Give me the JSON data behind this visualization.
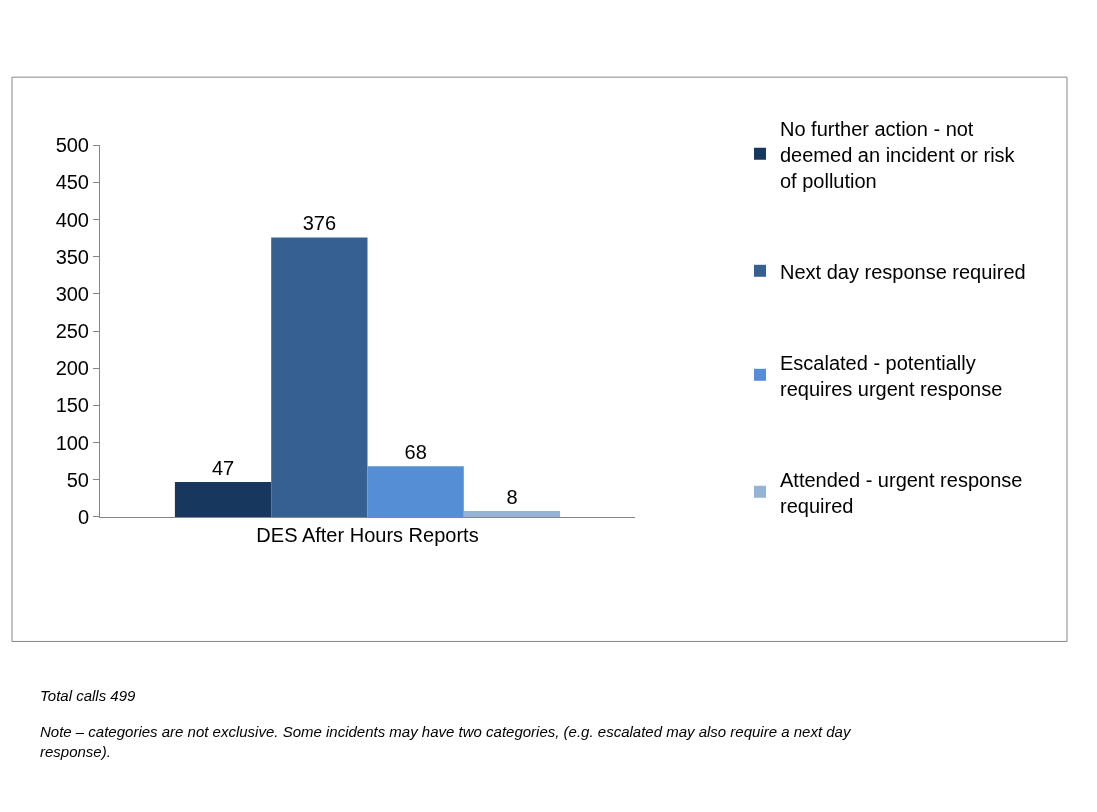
{
  "chart_data": {
    "type": "bar",
    "categories": [
      "DES After Hours Reports"
    ],
    "series": [
      {
        "name": "No further action - not deemed an incident or risk of pollution",
        "color": "#17375e",
        "values": [
          47
        ]
      },
      {
        "name": "Next day response required",
        "color": "#366092",
        "values": [
          376
        ]
      },
      {
        "name": "Escalated - potentially requires urgent response",
        "color": "#558ed5",
        "values": [
          68
        ]
      },
      {
        "name": "Attended - urgent response required",
        "color": "#95b3d7",
        "values": [
          8
        ]
      }
    ],
    "ylim": [
      0,
      500
    ],
    "yticks": [
      0,
      50,
      100,
      150,
      200,
      250,
      300,
      350,
      400,
      450,
      500
    ],
    "data_labels": true,
    "legend": "right",
    "annotations": [
      "Total calls 499",
      "Note – categories are not exclusive. Some incidents may have two categories, (e.g. escalated may also require a next day response)."
    ]
  }
}
